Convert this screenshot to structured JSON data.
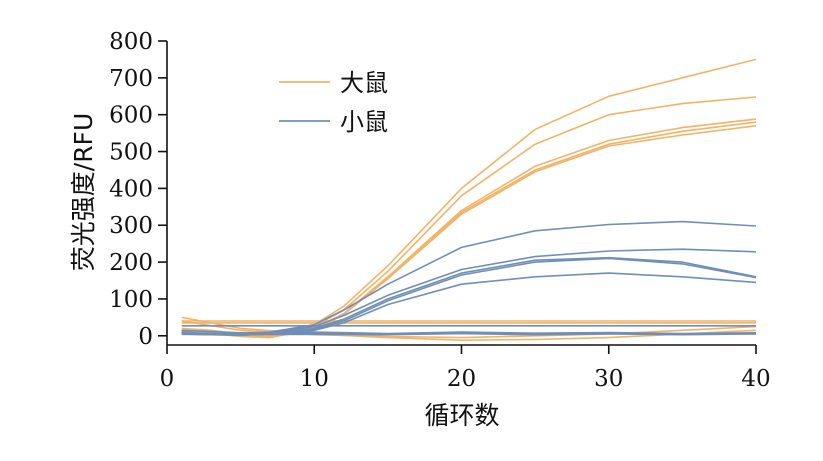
{
  "chart_data": {
    "type": "line",
    "title": "",
    "xlabel": "循环数",
    "ylabel": "荧光强度/RFU",
    "xlim": [
      0,
      40
    ],
    "ylim": [
      -25,
      800
    ],
    "xticks": [
      "0",
      "10",
      "20",
      "30",
      "40"
    ],
    "yticks": [
      "0",
      "100",
      "200",
      "300",
      "400",
      "500",
      "600",
      "700",
      "800"
    ],
    "grid": false,
    "legend_position": "top-left",
    "groups": [
      {
        "label": "大鼠",
        "color": "#f2b366"
      },
      {
        "label": "小鼠",
        "color": "#6f8fb8"
      }
    ],
    "series": [
      {
        "group": 0,
        "x": [
          1,
          3,
          5,
          7,
          10,
          12,
          15,
          20,
          25,
          30,
          35,
          40
        ],
        "y": [
          20,
          15,
          5,
          0,
          30,
          80,
          190,
          400,
          560,
          650,
          700,
          750
        ]
      },
      {
        "group": 0,
        "x": [
          1,
          3,
          5,
          7,
          10,
          12,
          15,
          20,
          25,
          30,
          35,
          40
        ],
        "y": [
          15,
          10,
          3,
          0,
          25,
          70,
          175,
          380,
          520,
          600,
          630,
          648
        ]
      },
      {
        "group": 0,
        "x": [
          1,
          3,
          5,
          7,
          10,
          12,
          15,
          20,
          25,
          30,
          35,
          40
        ],
        "y": [
          10,
          8,
          2,
          0,
          20,
          60,
          160,
          340,
          460,
          530,
          565,
          588
        ]
      },
      {
        "group": 0,
        "x": [
          1,
          3,
          5,
          7,
          10,
          12,
          15,
          20,
          25,
          30,
          35,
          40
        ],
        "y": [
          12,
          7,
          0,
          -2,
          20,
          60,
          160,
          335,
          450,
          520,
          555,
          580
        ]
      },
      {
        "group": 0,
        "x": [
          1,
          3,
          5,
          7,
          10,
          12,
          15,
          20,
          25,
          30,
          35,
          40
        ],
        "y": [
          10,
          6,
          -2,
          -5,
          18,
          58,
          155,
          330,
          445,
          515,
          545,
          570
        ]
      },
      {
        "group": 0,
        "x": [
          1,
          40
        ],
        "y": [
          40,
          40
        ]
      },
      {
        "group": 0,
        "x": [
          1,
          40
        ],
        "y": [
          35,
          35
        ]
      },
      {
        "group": 0,
        "x": [
          1,
          5,
          10,
          15,
          20,
          25,
          30,
          35,
          40
        ],
        "y": [
          50,
          20,
          5,
          -5,
          -12,
          -10,
          -5,
          5,
          15
        ]
      },
      {
        "group": 0,
        "x": [
          1,
          5,
          10,
          15,
          20,
          25,
          30,
          35,
          40
        ],
        "y": [
          40,
          15,
          3,
          -2,
          -5,
          0,
          5,
          15,
          25
        ]
      },
      {
        "group": 1,
        "x": [
          1,
          3,
          5,
          7,
          10,
          12,
          15,
          20,
          25,
          30,
          35,
          40
        ],
        "y": [
          10,
          5,
          5,
          10,
          30,
          70,
          140,
          240,
          285,
          302,
          310,
          298
        ]
      },
      {
        "group": 1,
        "x": [
          1,
          3,
          5,
          7,
          10,
          12,
          15,
          20,
          25,
          30,
          35,
          40
        ],
        "y": [
          8,
          5,
          4,
          8,
          25,
          55,
          110,
          180,
          215,
          230,
          235,
          228
        ]
      },
      {
        "group": 1,
        "x": [
          1,
          3,
          5,
          7,
          10,
          12,
          15,
          20,
          25,
          30,
          35,
          40
        ],
        "y": [
          5,
          4,
          3,
          6,
          20,
          45,
          100,
          170,
          205,
          212,
          200,
          160
        ]
      },
      {
        "group": 1,
        "x": [
          1,
          3,
          5,
          7,
          10,
          12,
          15,
          20,
          25,
          30,
          35,
          40
        ],
        "y": [
          5,
          3,
          2,
          5,
          18,
          40,
          95,
          165,
          200,
          210,
          195,
          158
        ]
      },
      {
        "group": 1,
        "x": [
          1,
          3,
          5,
          7,
          10,
          12,
          15,
          20,
          25,
          30,
          35,
          40
        ],
        "y": [
          4,
          3,
          2,
          5,
          15,
          35,
          85,
          140,
          160,
          170,
          160,
          145
        ]
      },
      {
        "group": 1,
        "x": [
          1,
          40
        ],
        "y": [
          27,
          27
        ]
      },
      {
        "group": 1,
        "x": [
          1,
          5,
          10,
          15,
          20,
          25,
          30,
          35,
          40
        ],
        "y": [
          15,
          8,
          10,
          6,
          10,
          7,
          9,
          6,
          8
        ]
      },
      {
        "group": 1,
        "x": [
          1,
          5,
          10,
          15,
          20,
          25,
          30,
          35,
          40
        ],
        "y": [
          8,
          5,
          6,
          5,
          7,
          4,
          6,
          5,
          6
        ]
      },
      {
        "group": 1,
        "x": [
          1,
          5,
          10,
          15,
          20,
          25,
          30,
          35,
          40
        ],
        "y": [
          5,
          3,
          4,
          3,
          6,
          3,
          5,
          3,
          5
        ]
      }
    ]
  }
}
